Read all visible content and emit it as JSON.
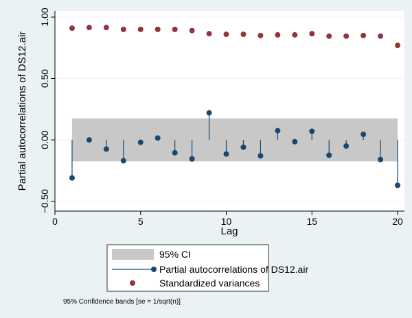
{
  "chart_data": {
    "type": "bar",
    "xlabel": "Lag",
    "ylabel": "Partial autocorrelations of DS12.air",
    "xlim": [
      0,
      20.4
    ],
    "ylim": [
      -0.58,
      1.05
    ],
    "x_ticks": [
      0,
      5,
      10,
      15,
      20
    ],
    "y_ticks": [
      -0.5,
      0,
      0.5,
      1
    ],
    "x_tick_labels": [
      "0",
      "5",
      "10",
      "15",
      "20"
    ],
    "y_tick_labels": [
      "−0.50",
      "0.00",
      "0.50",
      "1.00"
    ],
    "grid": "horizontal",
    "ci_band": [
      -0.175,
      0.175
    ],
    "series": [
      {
        "name": "Partial autocorrelations of DS12.air",
        "kind": "spike",
        "x": [
          1,
          2,
          3,
          4,
          5,
          6,
          7,
          8,
          9,
          10,
          11,
          12,
          13,
          14,
          15,
          16,
          17,
          18,
          19,
          20
        ],
        "values": [
          -0.31,
          0.0,
          -0.075,
          -0.17,
          -0.02,
          0.015,
          -0.105,
          -0.155,
          0.22,
          -0.115,
          -0.06,
          -0.13,
          0.075,
          -0.015,
          0.07,
          -0.125,
          -0.05,
          0.045,
          -0.16,
          -0.37
        ]
      },
      {
        "name": "Standardized variances",
        "kind": "scatter",
        "x": [
          1,
          2,
          3,
          4,
          5,
          6,
          7,
          8,
          9,
          10,
          11,
          12,
          13,
          14,
          15,
          16,
          17,
          18,
          19,
          20
        ],
        "values": [
          0.91,
          0.915,
          0.915,
          0.9,
          0.9,
          0.9,
          0.9,
          0.89,
          0.865,
          0.86,
          0.86,
          0.85,
          0.855,
          0.855,
          0.865,
          0.845,
          0.845,
          0.85,
          0.845,
          0.77
        ]
      }
    ],
    "legend": {
      "placement": "bottom",
      "entries": [
        "95% CI",
        "Partial autocorrelations of DS12.air",
        "Standardized variances"
      ]
    },
    "note": "95% Confidence bands [se = 1/sqrt(n)]"
  },
  "colors": {
    "background": "#eaf2f3",
    "plot": "#ffffff",
    "ci_band": "#c8c8c8",
    "spike": "#1a476f",
    "variance": "#90353b",
    "grid": "#eaf2f3"
  }
}
